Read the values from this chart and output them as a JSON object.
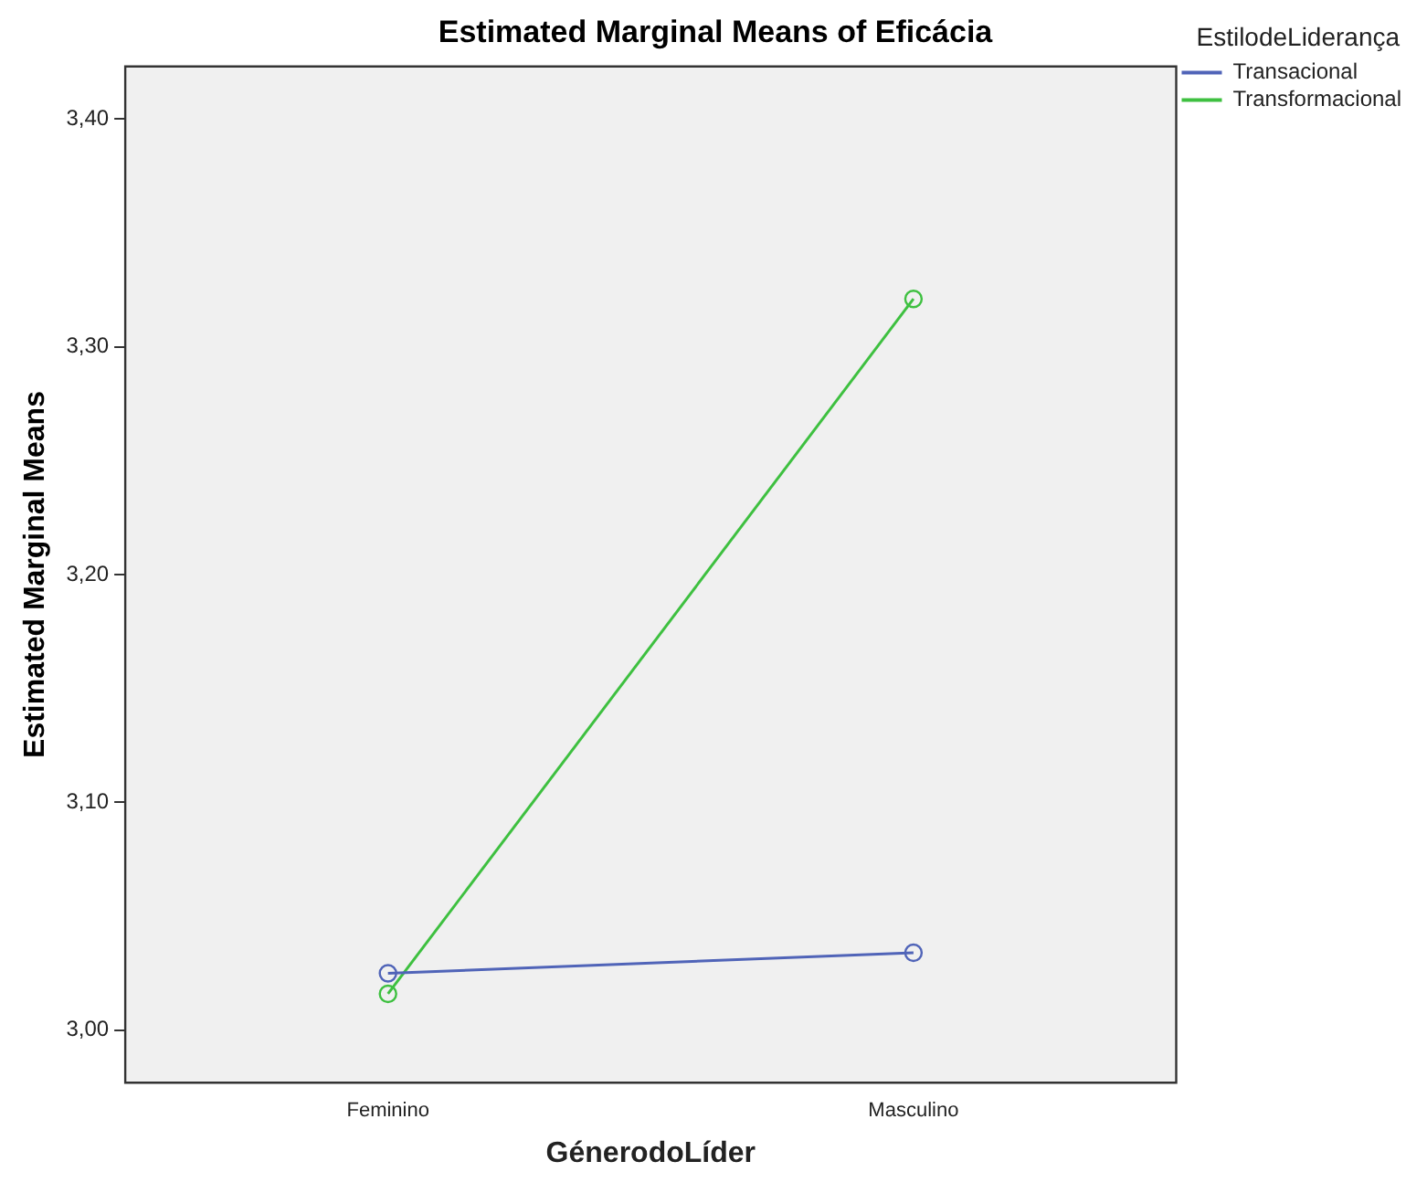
{
  "chart_data": {
    "type": "line",
    "title": "Estimated Marginal Means of Eficácia",
    "xlabel": "GénerodoLíder",
    "ylabel": "Estimated Marginal Means",
    "legend_title": "EstilodeLiderança",
    "categories": [
      "Feminino",
      "Masculino"
    ],
    "series": [
      {
        "name": "Transacional",
        "color": "#5064b8",
        "values": [
          3.025,
          3.034
        ]
      },
      {
        "name": "Transformacional",
        "color": "#3ec040",
        "values": [
          3.016,
          3.321
        ]
      }
    ],
    "ylim": [
      2.977,
      3.423
    ],
    "yticks": [
      {
        "value": 3.0,
        "label": "3,00"
      },
      {
        "value": 3.1,
        "label": "3,10"
      },
      {
        "value": 3.2,
        "label": "3,20"
      },
      {
        "value": 3.3,
        "label": "3,30"
      },
      {
        "value": 3.4,
        "label": "3,40"
      }
    ],
    "grid": false,
    "legend": "top right",
    "marker": "circle",
    "line_style": "solid"
  }
}
